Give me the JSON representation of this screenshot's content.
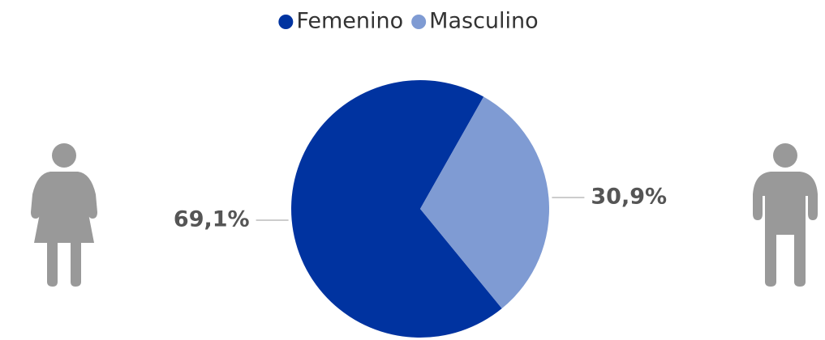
{
  "chart_data": {
    "type": "pie",
    "categories": [
      "Femenino",
      "Masculino"
    ],
    "values": [
      69.1,
      30.9
    ],
    "value_labels": [
      "69,1%",
      "30,9%"
    ],
    "colors": [
      "#0033a0",
      "#7f9bd3"
    ]
  }
}
